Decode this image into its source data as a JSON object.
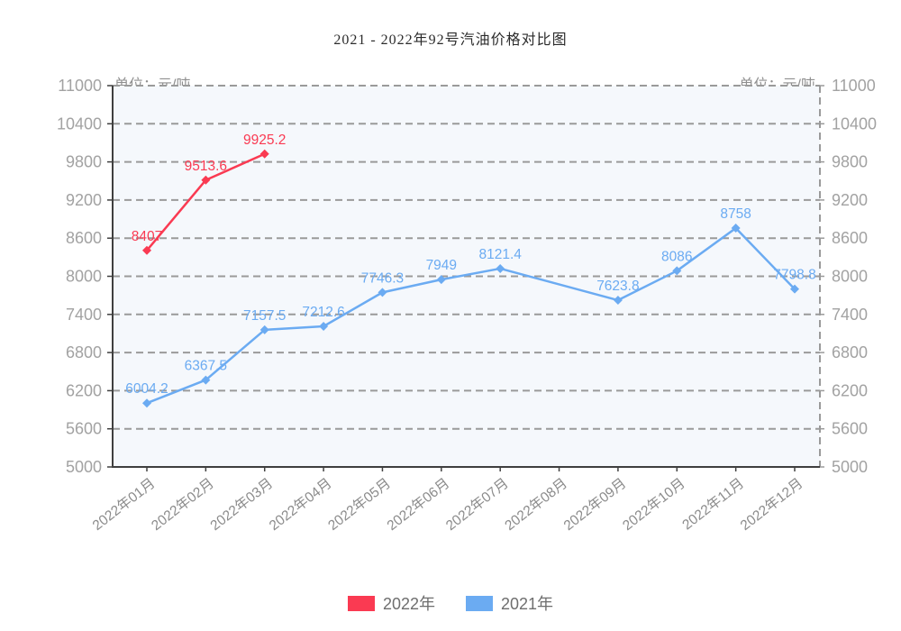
{
  "title": "2021 - 2022年92号汽油价格对比图",
  "unit_label_left": "单位：元/吨",
  "unit_label_right": "单位：元/吨",
  "legend": [
    {
      "label": "2022年",
      "color": "#fa3a52"
    },
    {
      "label": "2021年",
      "color": "#6babf2"
    }
  ],
  "colors": {
    "grid": "#9a9a9a",
    "axis": "#3f3f3f",
    "plot_background": "#f5f8fc",
    "y_tick_label": "#a2a2a2",
    "x_tick_label": "#8c8c8c"
  },
  "chart_data": {
    "type": "line",
    "title": "2021 - 2022年92号汽油价格对比图",
    "categories": [
      "2022年01月",
      "2022年02月",
      "2022年03月",
      "2022年04月",
      "2022年05月",
      "2022年06月",
      "2022年07月",
      "2022年08月",
      "2022年09月",
      "2022年10月",
      "2022年11月",
      "2022年12月"
    ],
    "series": [
      {
        "name": "2022年",
        "color": "#fa3a52",
        "values": [
          8407,
          9513.6,
          9925.2,
          null,
          null,
          null,
          null,
          null,
          null,
          null,
          null,
          null
        ]
      },
      {
        "name": "2021年",
        "color": "#6babf2",
        "values": [
          6004.2,
          6367.5,
          7157.5,
          7212.6,
          7746.3,
          7949,
          8121.4,
          null,
          7623.8,
          8086,
          8758,
          7798.8
        ]
      }
    ],
    "ylabel": "单位：元/吨",
    "ylim": [
      5000,
      11000
    ],
    "y_ticks": [
      5000,
      5600,
      6200,
      6800,
      7400,
      8000,
      8600,
      9200,
      9800,
      10400,
      11000
    ],
    "grid": true,
    "grid_style": "dashed",
    "legend_position": "bottom"
  }
}
